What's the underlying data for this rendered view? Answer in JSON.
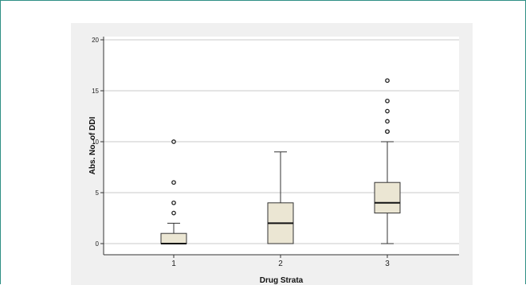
{
  "chart_data": {
    "type": "box",
    "title": "",
    "xlabel": "Drug Strata",
    "ylabel": "Abs. No. of DDI",
    "ylim": [
      0,
      20
    ],
    "yticks": [
      0,
      5,
      10,
      15,
      20
    ],
    "categories": [
      "1",
      "2",
      "3"
    ],
    "boxes": [
      {
        "category": "1",
        "whisker_low": 0,
        "q1": 0,
        "median": 0,
        "q3": 1,
        "whisker_high": 2,
        "outliers": [
          3,
          4,
          6,
          10
        ]
      },
      {
        "category": "2",
        "whisker_low": 0,
        "q1": 0,
        "median": 2,
        "q3": 4,
        "whisker_high": 9,
        "outliers": []
      },
      {
        "category": "3",
        "whisker_low": 0,
        "q1": 3,
        "median": 4,
        "q3": 6,
        "whisker_high": 10,
        "outliers": [
          11,
          11,
          12,
          13,
          14,
          16
        ]
      }
    ],
    "grid": true,
    "box_color": "#ebe6d3"
  }
}
